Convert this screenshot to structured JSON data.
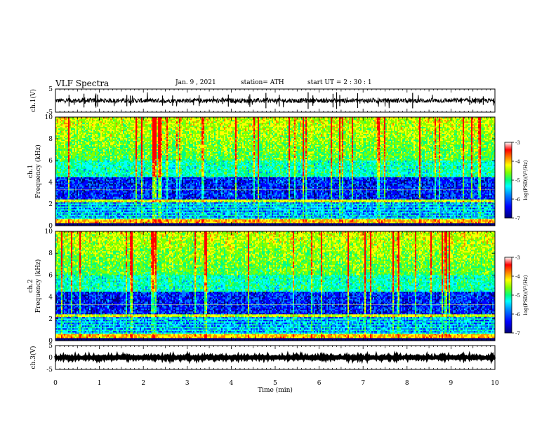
{
  "header": {
    "title": "VLF Spectra",
    "date": "Jan. 9 , 2021",
    "station": "station= ATH",
    "start": "start UT =  2 : 30 : 1"
  },
  "colors": {
    "colormap": [
      "#00007a",
      "#0000ff",
      "#0080ff",
      "#00ffff",
      "#00ff80",
      "#7fff00",
      "#ffff00",
      "#ff8000",
      "#ff0000",
      "#ffffff"
    ],
    "frame": "#000000",
    "waveform": "#000000"
  },
  "chart_data": [
    {
      "id": "ch1-waveform",
      "type": "line",
      "ylabel": "ch.1(V)",
      "ylim": [
        -5,
        5
      ],
      "yticks": [
        "5",
        "-5"
      ],
      "xlim": [
        0,
        10
      ],
      "description_values": {
        "baseline": 0.0,
        "noise_amplitude": 1.0
      }
    },
    {
      "id": "ch1-spectrogram",
      "type": "heatmap",
      "ylabel_channel": "ch.1",
      "ylabel": "Frequency (kHz)",
      "ylim": [
        0,
        10
      ],
      "yticks": [
        "0",
        "2",
        "4",
        "6",
        "8",
        "10"
      ],
      "xlim": [
        0,
        10
      ],
      "colorbar": {
        "label": "log(PSD)(V²/Hz)",
        "range": [
          -7,
          -3
        ],
        "ticks": [
          "-3",
          "-4",
          "-5",
          "-6",
          "-7"
        ]
      }
    },
    {
      "id": "ch2-spectrogram",
      "type": "heatmap",
      "ylabel_channel": "ch.2",
      "ylabel": "Frequency (kHz)",
      "ylim": [
        0,
        10
      ],
      "yticks": [
        "0",
        "2",
        "4",
        "6",
        "8",
        "10"
      ],
      "xlim": [
        0,
        10
      ],
      "colorbar": {
        "label": "log(PSD)(V²/Hz)",
        "range": [
          -7,
          -3
        ],
        "ticks": [
          "-3",
          "-4",
          "-5",
          "-6",
          "-7"
        ]
      }
    },
    {
      "id": "ch3-waveform",
      "type": "line",
      "ylabel": "ch.3(V)",
      "ylim": [
        -5,
        5
      ],
      "yticks": [
        "5",
        "0",
        "-5"
      ],
      "xlim": [
        0,
        10
      ],
      "description_values": {
        "baseline": 0.0,
        "noise_amplitude": 0.3
      }
    }
  ],
  "xaxis": {
    "label": "Time (min)",
    "ticks": [
      "0",
      "1",
      "2",
      "3",
      "4",
      "5",
      "6",
      "7",
      "8",
      "9",
      "10"
    ]
  }
}
